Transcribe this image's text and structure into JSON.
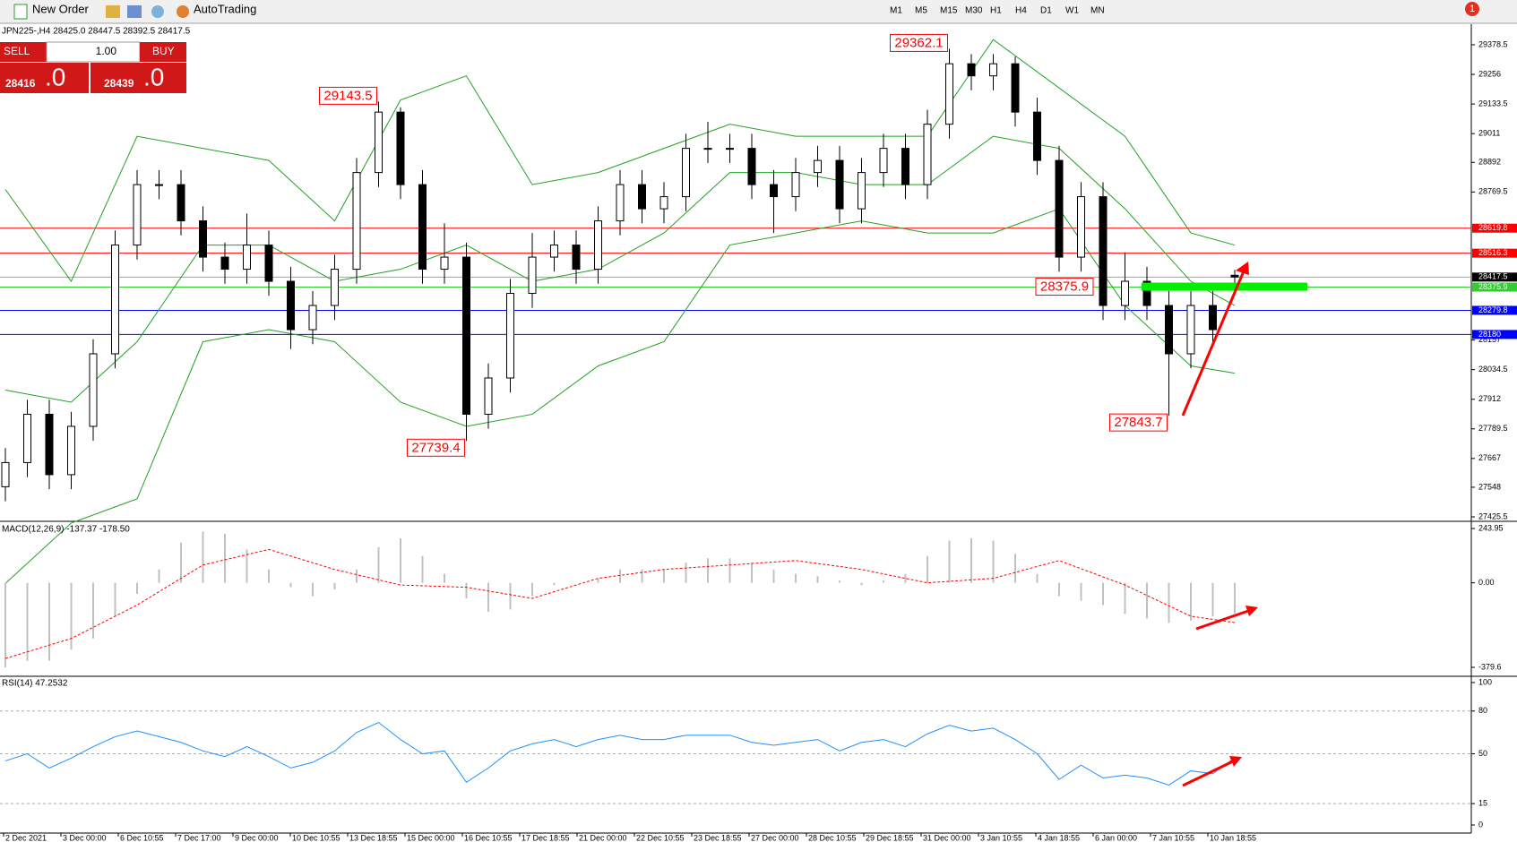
{
  "toolbar": {
    "new_order": "New Order",
    "autotrading": "AutoTrading",
    "timeframes": [
      "M1",
      "M5",
      "M15",
      "M30",
      "H1",
      "H4",
      "D1",
      "W1",
      "MN"
    ],
    "notifications": "1"
  },
  "trade_panel": {
    "sell": "SELL",
    "buy": "BUY",
    "lots": "1.00",
    "sell_price": "28416",
    "sell_pips": ".0",
    "buy_price": "28439",
    "buy_pips": ".0"
  },
  "chart_data": [
    {
      "type": "candlestick",
      "title": "JPN225-,H4  28425.0 28447.5 28392.5 28417.5",
      "open": [
        27550,
        27650,
        27850,
        27600,
        27800,
        28100,
        28550,
        28800,
        28800,
        28650,
        28500,
        28450,
        28550,
        28400,
        28200,
        28300,
        28450,
        28850,
        29100,
        28800,
        28450,
        28500,
        27850,
        28000,
        28350,
        28500,
        28550,
        28450,
        28650,
        28800,
        28700,
        28750,
        28950,
        28950,
        28950,
        28800,
        28750,
        28850,
        28900,
        28700,
        28850,
        28950,
        28800,
        29050,
        29300,
        29250,
        29300,
        29100,
        28900,
        28500,
        28750,
        28300,
        28400,
        28300,
        28100,
        28300,
        28425
      ],
      "high": [
        27710,
        27910,
        27910,
        27860,
        28160,
        28610,
        28860,
        28860,
        28860,
        28710,
        28560,
        28680,
        28610,
        28460,
        28360,
        28510,
        28910,
        29143.5,
        29120,
        28860,
        28640,
        28560,
        28060,
        28410,
        28600,
        28610,
        28610,
        28710,
        28860,
        28860,
        28810,
        29010,
        29060,
        29010,
        29010,
        28860,
        28910,
        28960,
        28960,
        28910,
        29010,
        29010,
        29110,
        29362.1,
        29340,
        29340,
        29330,
        29160,
        28960,
        28810,
        28810,
        28520,
        28460,
        28360,
        28360,
        28360,
        28447.5
      ],
      "low": [
        27490,
        27590,
        27540,
        27540,
        27740,
        28040,
        28490,
        28740,
        28590,
        28440,
        28390,
        28390,
        28340,
        28120,
        28140,
        28240,
        28390,
        28790,
        28740,
        28390,
        28390,
        27739.4,
        27790,
        27940,
        28290,
        28440,
        28390,
        28390,
        28590,
        28640,
        28640,
        28690,
        28890,
        28890,
        28740,
        28600,
        28690,
        28790,
        28640,
        28640,
        28790,
        28740,
        28740,
        28990,
        29190,
        29190,
        29040,
        28840,
        28440,
        28440,
        28240,
        28240,
        28240,
        27843.7,
        28040,
        28140,
        28392.5
      ],
      "close": [
        27650,
        27850,
        27600,
        27800,
        28100,
        28550,
        28800,
        28800,
        28650,
        28500,
        28450,
        28550,
        28400,
        28200,
        28300,
        28450,
        28850,
        29100,
        28800,
        28450,
        28500,
        27850,
        28000,
        28350,
        28500,
        28550,
        28450,
        28650,
        28800,
        28700,
        28750,
        28950,
        28950,
        28950,
        28800,
        28750,
        28850,
        28900,
        28700,
        28850,
        28950,
        28800,
        29050,
        29300,
        29250,
        29300,
        29100,
        28900,
        28500,
        28750,
        28300,
        28400,
        28300,
        28100,
        28300,
        28200,
        28417.5
      ],
      "color_up": "#ffffff",
      "color_down": "#000000",
      "bands": {
        "x": [
          0,
          3,
          6,
          9,
          12,
          15,
          18,
          21,
          24,
          27,
          30,
          33,
          36,
          39,
          42,
          45,
          48,
          51,
          54,
          56
        ],
        "upper": [
          28780,
          28400,
          29000,
          28950,
          28900,
          28650,
          29150,
          29250,
          28800,
          28850,
          28950,
          29050,
          29000,
          29000,
          29000,
          29400,
          29200,
          29000,
          28600,
          28550
        ],
        "middle": [
          27950,
          27900,
          28150,
          28550,
          28550,
          28400,
          28450,
          28550,
          28400,
          28450,
          28600,
          28850,
          28850,
          28800,
          28800,
          29000,
          28950,
          28700,
          28400,
          28300
        ],
        "lower": [
          27150,
          27400,
          27500,
          28150,
          28200,
          28150,
          27900,
          27800,
          27850,
          28050,
          28150,
          28550,
          28600,
          28650,
          28600,
          28600,
          28700,
          28300,
          28050,
          28020
        ],
        "color": "#22a022"
      },
      "ylim": [
        27425.5,
        29378.5
      ],
      "yticks": [
        29378.5,
        29256.0,
        29133.5,
        29011.0,
        28892.0,
        28769.5,
        28157.0,
        28034.5,
        27912.0,
        27789.5,
        27667.0,
        27548.0,
        27425.5
      ],
      "levels": [
        {
          "value": 28619.8,
          "color": "#ff0000"
        },
        {
          "value": 28516.3,
          "color": "#ff0000"
        },
        {
          "value": 28375.9,
          "color": "#33cc33"
        },
        {
          "value": 28279.8,
          "color": "#0000ff"
        },
        {
          "value": 28180.0,
          "color": "#0000ff"
        }
      ],
      "bid": {
        "value": 28417.5,
        "color": "#a0a0a0"
      },
      "price_labels": [
        29362.1,
        29143.5,
        27739.4,
        28375.9,
        27843.7
      ],
      "x_labels": [
        "2 Dec 2021",
        "3 Dec 00:00",
        "6 Dec 10:55",
        "7 Dec 17:00",
        "9 Dec 00:00",
        "10 Dec 10:55",
        "13 Dec 18:55",
        "15 Dec 00:00",
        "16 Dec 10:55",
        "17 Dec 18:55",
        "21 Dec 00:00",
        "22 Dec 10:55",
        "23 Dec 18:55",
        "27 Dec 00:00",
        "28 Dec 10:55",
        "29 Dec 18:55",
        "31 Dec 00:00",
        "3 Jan 10:55",
        "4 Jan 18:55",
        "6 Jan 00:00",
        "7 Jan 10:55",
        "10 Jan 18:55"
      ]
    },
    {
      "type": "macd",
      "title": "MACD(12,26,9) -137.37 -178.50",
      "values": [
        -380,
        -350,
        -350,
        -300,
        -250,
        -150,
        -50,
        60,
        180,
        230,
        220,
        150,
        60,
        -20,
        -60,
        -30,
        60,
        160,
        200,
        120,
        40,
        -70,
        -130,
        -120,
        -60,
        -10,
        0,
        20,
        60,
        60,
        60,
        90,
        110,
        110,
        90,
        60,
        40,
        30,
        10,
        -10,
        10,
        40,
        120,
        190,
        200,
        190,
        130,
        40,
        -60,
        -80,
        -100,
        -140,
        -160,
        -180,
        -170,
        -150,
        -137.37
      ],
      "color": "#c0c0c0",
      "signal": {
        "x": [
          0,
          3,
          6,
          9,
          12,
          15,
          18,
          21,
          24,
          27,
          30,
          33,
          36,
          39,
          42,
          45,
          48,
          51,
          54,
          56
        ],
        "values": [
          -340,
          -250,
          -100,
          80,
          150,
          60,
          -10,
          -20,
          -70,
          20,
          60,
          80,
          100,
          60,
          0,
          20,
          100,
          -10,
          -150,
          -178.5
        ],
        "color": "#ff0000"
      },
      "ylim": [
        -379.6,
        243.95
      ],
      "yticks": [
        243.95,
        {
          "value": 0,
          "label": "0.00"
        },
        -379.6
      ]
    },
    {
      "type": "line",
      "title": "RSI(14) 47.2532",
      "values": [
        45,
        50,
        40,
        47,
        55,
        62,
        66,
        62,
        58,
        52,
        48,
        55,
        48,
        40,
        44,
        52,
        65,
        72,
        60,
        50,
        52,
        30,
        40,
        52,
        57,
        60,
        55,
        60,
        63,
        60,
        60,
        63,
        63,
        63,
        58,
        56,
        58,
        60,
        52,
        58,
        60,
        55,
        64,
        70,
        66,
        68,
        60,
        50,
        32,
        42,
        33,
        35,
        33,
        28,
        38,
        36,
        47.2532
      ],
      "color": "#1e90ff",
      "ylim": [
        0,
        100
      ],
      "yticks": [
        100,
        80,
        50,
        15,
        0
      ]
    }
  ]
}
